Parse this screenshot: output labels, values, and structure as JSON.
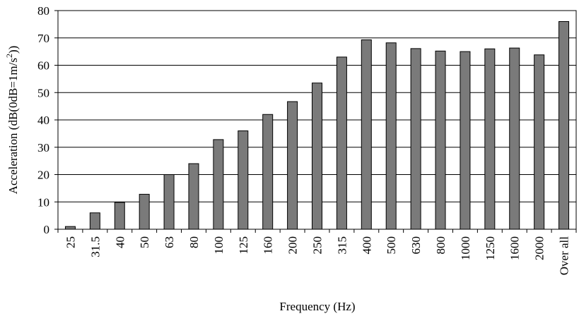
{
  "chart_data": {
    "type": "bar",
    "xlabel": "Frequency (Hz)",
    "ylabel": "Acceleration (dB(0dB=1m/s",
    "ylabel_sup": "2",
    "ylabel_end": "))",
    "ylim": [
      0,
      80
    ],
    "yticks": [
      0,
      10,
      20,
      30,
      40,
      50,
      60,
      70,
      80
    ],
    "grid": "horizontal",
    "legend": "none",
    "categories": [
      "25",
      "31.5",
      "40",
      "50",
      "63",
      "80",
      "100",
      "125",
      "160",
      "200",
      "250",
      "315",
      "400",
      "500",
      "630",
      "800",
      "1000",
      "1250",
      "1600",
      "2000",
      "Over all"
    ],
    "values": [
      1,
      6,
      9.8,
      12.8,
      20,
      24,
      32.8,
      36,
      42,
      46.7,
      53.5,
      63,
      69.3,
      68.2,
      66.1,
      65.2,
      65,
      66,
      66.3,
      63.8,
      76
    ],
    "colors": {
      "bar": "#7a7a7a",
      "axis": "#000000",
      "grid": "#000000"
    }
  }
}
